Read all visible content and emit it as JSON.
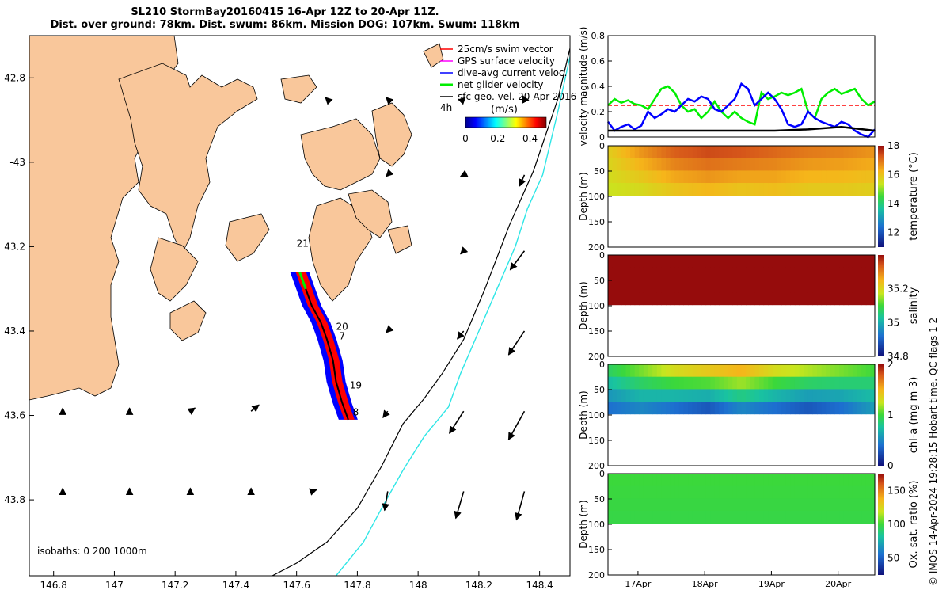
{
  "header": {
    "line1": "SL210 StormBay20160415 16-Apr 12Z to 20-Apr 11Z.",
    "line2": "Dist. over ground: 78km. Dist. swum: 86km. Mission DOG: 107km. Swum: 118km"
  },
  "credit": "© IMOS 14-Apr-2024 19:28:15 Hobart time. QC flags 1  2",
  "colors": {
    "land": "#f9c79b",
    "swim": "#ff0000",
    "gps": "#ff00ff",
    "dive_avg": "#0000ff",
    "net": "#00ee00",
    "sfc_geo": "#000000",
    "isobath_200": "#000000",
    "isobath_1000": "#2ee6e6"
  },
  "chart_data": [
    {
      "id": "map",
      "type": "scatter",
      "description_free": true,
      "xlim": [
        146.72,
        148.5
      ],
      "ylim": [
        -43.98,
        -42.7
      ],
      "xticks": [
        146.8,
        147,
        147.2,
        147.4,
        147.6,
        147.8,
        148,
        148.2,
        148.4
      ],
      "xtick_labels": [
        "146.8",
        "147",
        "147.2",
        "147.4",
        "147.6",
        "147.8",
        "148",
        "148.2",
        "148.4"
      ],
      "yticks": [
        -42.8,
        -43.0,
        -43.2,
        -43.4,
        -43.6,
        -43.8
      ],
      "ytick_labels": [
        "42.8",
        "-43",
        "43.2",
        "43.4",
        "43.6",
        "43.8"
      ],
      "legend": {
        "placement": "top-right",
        "entries": [
          "25cm/s swim vector",
          "GPS surface velocity",
          "dive-avg current veloc.",
          "net glider velocity",
          "sfc geo. vel. 20-Apr-2016"
        ]
      },
      "vector_scale_label": "4h",
      "colorbar": {
        "label": "(m/s)",
        "ticks": [
          "0",
          "0.2",
          "0.4"
        ],
        "range": [
          0,
          0.5
        ]
      },
      "isobath_label": "isobaths: 0   200  1000m",
      "day_labels": [
        {
          "text": "21",
          "lon": 147.6,
          "lat": -43.2
        },
        {
          "text": "20",
          "lon": 147.73,
          "lat": -43.397
        },
        {
          "text": "7",
          "lon": 147.74,
          "lat": -43.42
        },
        {
          "text": "19",
          "lon": 147.775,
          "lat": -43.536
        },
        {
          "text": "8",
          "lon": 147.785,
          "lat": -43.6
        }
      ],
      "track": [
        [
          147.61,
          -43.26
        ],
        [
          147.63,
          -43.3
        ],
        [
          147.65,
          -43.34
        ],
        [
          147.68,
          -43.38
        ],
        [
          147.7,
          -43.42
        ],
        [
          147.72,
          -43.47
        ],
        [
          147.73,
          -43.52
        ],
        [
          147.75,
          -43.57
        ],
        [
          147.77,
          -43.61
        ]
      ],
      "isobath_200": [
        [
          148.5,
          -42.73
        ],
        [
          148.46,
          -42.85
        ],
        [
          148.38,
          -43.02
        ],
        [
          148.3,
          -43.15
        ],
        [
          148.22,
          -43.3
        ],
        [
          148.15,
          -43.42
        ],
        [
          148.08,
          -43.5
        ],
        [
          148.02,
          -43.56
        ],
        [
          147.95,
          -43.62
        ],
        [
          147.88,
          -43.72
        ],
        [
          147.8,
          -43.82
        ],
        [
          147.7,
          -43.9
        ],
        [
          147.6,
          -43.95
        ],
        [
          147.52,
          -43.98
        ]
      ],
      "isobath_1000": [
        [
          148.5,
          -42.75
        ],
        [
          148.46,
          -42.88
        ],
        [
          148.41,
          -43.03
        ],
        [
          148.36,
          -43.11
        ],
        [
          148.32,
          -43.2
        ],
        [
          148.26,
          -43.3
        ],
        [
          148.2,
          -43.4
        ],
        [
          148.14,
          -43.5
        ],
        [
          148.1,
          -43.58
        ],
        [
          148.02,
          -43.65
        ],
        [
          147.95,
          -43.73
        ],
        [
          147.88,
          -43.82
        ],
        [
          147.82,
          -43.9
        ],
        [
          147.73,
          -43.98
        ]
      ],
      "geo_vectors": [
        {
          "lon": 147.7,
          "lat": -42.85,
          "u": -0.01,
          "v": 0.01
        },
        {
          "lon": 147.9,
          "lat": -42.85,
          "u": -0.01,
          "v": 0.01
        },
        {
          "lon": 148.15,
          "lat": -42.85,
          "u": 0.01,
          "v": 0.01
        },
        {
          "lon": 148.35,
          "lat": -42.85,
          "u": -0.01,
          "v": 0.02
        },
        {
          "lon": 147.9,
          "lat": -43.03,
          "u": -0.01,
          "v": -0.01
        },
        {
          "lon": 148.15,
          "lat": -43.03,
          "u": -0.02,
          "v": -0.01
        },
        {
          "lon": 148.35,
          "lat": -43.03,
          "u": -0.03,
          "v": -0.07
        },
        {
          "lon": 148.15,
          "lat": -43.21,
          "u": -0.02,
          "v": -0.02
        },
        {
          "lon": 148.35,
          "lat": -43.21,
          "u": -0.09,
          "v": -0.12
        },
        {
          "lon": 147.9,
          "lat": -43.4,
          "u": -0.01,
          "v": -0.01
        },
        {
          "lon": 148.15,
          "lat": -43.4,
          "u": -0.04,
          "v": -0.05
        },
        {
          "lon": 148.35,
          "lat": -43.4,
          "u": -0.1,
          "v": -0.15
        },
        {
          "lon": 146.83,
          "lat": -43.59,
          "u": 0.0,
          "v": 0.02
        },
        {
          "lon": 147.05,
          "lat": -43.59,
          "u": 0.0,
          "v": 0.02
        },
        {
          "lon": 147.25,
          "lat": -43.59,
          "u": 0.03,
          "v": 0.02
        },
        {
          "lon": 147.45,
          "lat": -43.59,
          "u": 0.05,
          "v": 0.04
        },
        {
          "lon": 147.9,
          "lat": -43.59,
          "u": -0.03,
          "v": -0.04
        },
        {
          "lon": 148.15,
          "lat": -43.59,
          "u": -0.09,
          "v": -0.14
        },
        {
          "lon": 148.35,
          "lat": -43.59,
          "u": -0.1,
          "v": -0.18
        },
        {
          "lon": 146.83,
          "lat": -43.78,
          "u": 0.0,
          "v": 0.02
        },
        {
          "lon": 147.05,
          "lat": -43.78,
          "u": 0.0,
          "v": 0.02
        },
        {
          "lon": 147.25,
          "lat": -43.78,
          "u": 0.0,
          "v": 0.02
        },
        {
          "lon": 147.45,
          "lat": -43.78,
          "u": 0.0,
          "v": 0.02
        },
        {
          "lon": 147.65,
          "lat": -43.78,
          "u": 0.03,
          "v": 0.01
        },
        {
          "lon": 147.9,
          "lat": -43.78,
          "u": -0.02,
          "v": -0.12
        },
        {
          "lon": 148.15,
          "lat": -43.78,
          "u": -0.05,
          "v": -0.17
        },
        {
          "lon": 148.35,
          "lat": -43.78,
          "u": -0.05,
          "v": -0.18
        }
      ]
    },
    {
      "id": "velocity",
      "type": "line",
      "ylabel": "velocity magnitude (m/s)",
      "ylim": [
        0,
        0.8
      ],
      "yticks": [
        0,
        0.2,
        0.4,
        0.6,
        0.8
      ],
      "xlim": [
        16.5,
        20.5
      ],
      "series": [
        {
          "color": "#ff0000",
          "style": "dashdot",
          "x": [
            16.5,
            20.5
          ],
          "y": [
            0.25,
            0.25
          ]
        },
        {
          "color": "#00ee00",
          "style": "solid",
          "x": [
            16.5,
            16.6,
            16.7,
            16.8,
            16.9,
            17.0,
            17.1,
            17.2,
            17.3,
            17.4,
            17.5,
            17.6,
            17.7,
            17.8,
            17.9,
            18.0,
            18.1,
            18.2,
            18.3,
            18.4,
            18.5,
            18.6,
            18.7,
            18.8,
            18.9,
            19.0,
            19.1,
            19.2,
            19.3,
            19.4,
            19.5,
            19.6,
            19.7,
            19.8,
            19.9,
            20.0,
            20.1,
            20.2,
            20.3,
            20.4,
            20.5
          ],
          "y": [
            0.25,
            0.3,
            0.27,
            0.29,
            0.26,
            0.25,
            0.22,
            0.3,
            0.38,
            0.4,
            0.35,
            0.25,
            0.2,
            0.22,
            0.15,
            0.2,
            0.28,
            0.2,
            0.15,
            0.2,
            0.15,
            0.12,
            0.1,
            0.35,
            0.3,
            0.32,
            0.35,
            0.33,
            0.35,
            0.38,
            0.2,
            0.15,
            0.3,
            0.35,
            0.38,
            0.34,
            0.36,
            0.38,
            0.3,
            0.25,
            0.28
          ]
        },
        {
          "color": "#0000ff",
          "style": "solid",
          "x": [
            16.5,
            16.6,
            16.7,
            16.8,
            16.9,
            17.0,
            17.1,
            17.2,
            17.3,
            17.4,
            17.5,
            17.6,
            17.7,
            17.8,
            17.9,
            18.0,
            18.1,
            18.2,
            18.3,
            18.4,
            18.5,
            18.6,
            18.7,
            18.8,
            18.9,
            19.0,
            19.1,
            19.2,
            19.3,
            19.4,
            19.5,
            19.6,
            19.7,
            19.8,
            19.9,
            20.0,
            20.1,
            20.2,
            20.3,
            20.4,
            20.5
          ],
          "y": [
            0.12,
            0.05,
            0.08,
            0.1,
            0.06,
            0.09,
            0.2,
            0.15,
            0.18,
            0.22,
            0.2,
            0.25,
            0.3,
            0.28,
            0.32,
            0.3,
            0.22,
            0.2,
            0.25,
            0.3,
            0.42,
            0.38,
            0.25,
            0.3,
            0.35,
            0.3,
            0.22,
            0.1,
            0.08,
            0.1,
            0.2,
            0.15,
            0.12,
            0.1,
            0.08,
            0.12,
            0.1,
            0.05,
            0.02,
            0.0,
            0.06
          ]
        },
        {
          "color": "#000000",
          "style": "solid",
          "x": [
            16.5,
            17.0,
            17.5,
            18.0,
            18.5,
            19.0,
            19.5,
            20.0,
            20.5
          ],
          "y": [
            0.05,
            0.05,
            0.05,
            0.05,
            0.05,
            0.05,
            0.06,
            0.08,
            0.05
          ]
        }
      ]
    },
    {
      "id": "temperature",
      "type": "heatmap",
      "ylabel": "Depth (m)",
      "clabel": "temperature (°C)",
      "ylim": [
        0,
        200
      ],
      "yticks": [
        0,
        50,
        100,
        150,
        200
      ],
      "xlim": [
        16.5,
        20.5
      ],
      "crange": [
        11,
        18
      ],
      "cticks": [
        12,
        14,
        16,
        18
      ],
      "colormap": "thermal",
      "profile": {
        "x": [
          16.5,
          17.0,
          17.5,
          18.0,
          18.5,
          19.0,
          19.5,
          20.0,
          20.5
        ],
        "surface_value": [
          15.8,
          16.6,
          17.2,
          17.4,
          17.3,
          17.1,
          16.9,
          16.8,
          16.6
        ],
        "bottom_value": [
          15.4,
          15.6,
          16.0,
          16.2,
          16.0,
          16.1,
          15.9,
          15.9,
          15.8
        ]
      },
      "max_depth": 98
    },
    {
      "id": "salinity",
      "type": "heatmap",
      "ylabel": "Depth (m)",
      "clabel": "salinity",
      "ylim": [
        0,
        200
      ],
      "yticks": [
        0,
        50,
        100,
        150,
        200
      ],
      "xlim": [
        16.5,
        20.5
      ],
      "crange": [
        34.8,
        35.4
      ],
      "cticks": [
        34.8,
        35,
        35.2
      ],
      "colormap": "thermal",
      "profile": {
        "x": [
          16.5,
          20.5
        ],
        "surface_value": [
          35.5,
          35.5
        ],
        "bottom_value": [
          35.5,
          35.5
        ]
      },
      "max_depth": 98
    },
    {
      "id": "chla",
      "type": "heatmap",
      "ylabel": "Depth (m)",
      "clabel": "chl-a (mg m-3)",
      "ylim": [
        0,
        200
      ],
      "yticks": [
        0,
        50,
        100,
        150,
        200
      ],
      "xlim": [
        16.5,
        20.5
      ],
      "crange": [
        0,
        2
      ],
      "cticks": [
        0,
        1,
        2
      ],
      "colormap": "thermal",
      "profile": {
        "x": [
          16.5,
          17.0,
          17.5,
          18.0,
          18.5,
          19.0,
          19.5,
          20.0,
          20.5
        ],
        "surface_value": [
          0.9,
          1.1,
          1.3,
          1.4,
          1.5,
          1.3,
          1.2,
          1.1,
          1.0
        ],
        "bottom_value": [
          0.4,
          0.5,
          0.4,
          0.3,
          0.5,
          0.4,
          0.3,
          0.4,
          0.6
        ]
      },
      "max_depth": 98
    },
    {
      "id": "oxygen",
      "type": "heatmap",
      "ylabel": "Depth (m)",
      "clabel": "Ox. sat. ratio (%)",
      "ylim": [
        0,
        200
      ],
      "yticks": [
        0,
        50,
        100,
        150,
        200
      ],
      "xlim": [
        16.5,
        20.5
      ],
      "crange": [
        25,
        175
      ],
      "cticks": [
        50,
        100,
        150
      ],
      "colormap": "thermal",
      "profile": {
        "x": [
          16.5,
          20.5
        ],
        "surface_value": [
          100,
          100
        ],
        "bottom_value": [
          98,
          98
        ]
      },
      "max_depth": 98,
      "xticks": [
        16.95,
        17.95,
        18.95,
        19.95
      ],
      "xtick_labels": [
        "17Apr",
        "18Apr",
        "19Apr",
        "20Apr"
      ]
    }
  ]
}
